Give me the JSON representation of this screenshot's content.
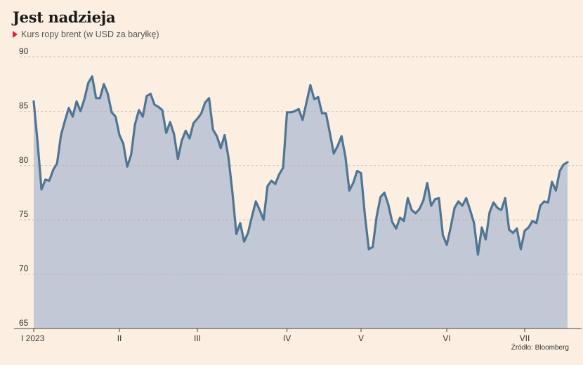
{
  "title": "Jest nadzieja",
  "subtitle": "Kurs ropy brent (w USD za baryłkę)",
  "source": "Źródło: Bloomberg",
  "colors": {
    "line": "#4f7594",
    "area": "#c3c8d6",
    "grid": "#b9b2aa",
    "accent": "#e5202e"
  },
  "chart_data": {
    "type": "area",
    "title": "Jest nadzieja",
    "ylabel": "",
    "xlabel": "",
    "ylim": [
      65,
      90
    ],
    "yticks": [
      65,
      70,
      75,
      80,
      85,
      90
    ],
    "grid": true,
    "x_tick_labels": [
      {
        "label": "I 2023",
        "index": 0
      },
      {
        "label": "II",
        "index": 22
      },
      {
        "label": "III",
        "index": 42
      },
      {
        "label": "IV",
        "index": 65
      },
      {
        "label": "V",
        "index": 84
      },
      {
        "label": "VI",
        "index": 106
      },
      {
        "label": "VII",
        "index": 126
      }
    ],
    "series": [
      {
        "values": [
          85.9,
          82.1,
          77.8,
          78.7,
          78.6,
          79.6,
          80.2,
          82.8,
          84.1,
          85.3,
          84.5,
          85.9,
          85.0,
          86.1,
          87.6,
          88.2,
          86.2,
          86.2,
          87.5,
          86.6,
          84.9,
          84.5,
          82.8,
          82.0,
          79.9,
          81.0,
          83.8,
          85.1,
          84.5,
          86.4,
          86.6,
          85.6,
          85.4,
          85.1,
          83.0,
          84.0,
          82.9,
          80.6,
          82.3,
          83.2,
          82.5,
          83.9,
          84.3,
          84.8,
          85.8,
          86.2,
          83.3,
          82.7,
          81.6,
          82.8,
          80.7,
          77.5,
          73.7,
          74.7,
          73.0,
          73.8,
          75.3,
          76.7,
          75.9,
          75.0,
          78.1,
          78.6,
          78.3,
          79.2,
          79.8,
          84.9,
          84.9,
          85.0,
          85.2,
          84.2,
          85.8,
          87.4,
          86.1,
          86.3,
          84.8,
          84.8,
          83.0,
          81.1,
          81.8,
          82.7,
          80.8,
          77.7,
          78.4,
          79.5,
          79.3,
          75.4,
          72.3,
          72.5,
          75.3,
          77.1,
          77.5,
          76.4,
          74.8,
          74.2,
          75.2,
          74.9,
          77.0,
          75.9,
          75.6,
          76.0,
          76.8,
          78.4,
          76.3,
          76.9,
          77.0,
          73.6,
          72.7,
          74.3,
          76.1,
          76.7,
          76.3,
          77.0,
          75.9,
          74.7,
          71.8,
          74.3,
          73.2,
          75.7,
          76.6,
          76.1,
          75.9,
          77.0,
          74.1,
          73.8,
          74.2,
          72.3,
          74.0,
          74.3,
          74.9,
          74.7,
          76.3,
          76.7,
          76.6,
          78.5,
          77.7,
          79.5,
          80.1,
          80.3
        ]
      }
    ]
  }
}
